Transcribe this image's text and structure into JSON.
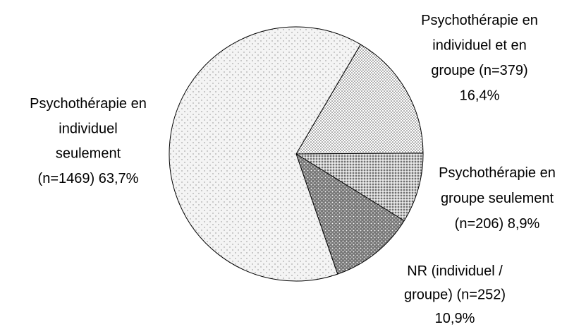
{
  "chart_data": {
    "type": "pie",
    "categories": [
      [
        "Psychothérapie en",
        "individuel et en",
        "groupe"
      ],
      [
        "Psychothérapie en",
        "groupe seulement"
      ],
      [
        "NR (individuel /",
        "groupe)"
      ],
      [
        "Psychothérapie en",
        "individuel",
        "seulement"
      ]
    ],
    "n": [
      379,
      206,
      252,
      1469
    ],
    "n_labels": [
      "(n=379)",
      "(n=206)",
      "(n=252)",
      "(n=1469)"
    ],
    "values": [
      16.4,
      8.9,
      10.9,
      63.7
    ],
    "value_labels": [
      "16,4%",
      "8,9%",
      "10,9%",
      "63,7%"
    ]
  }
}
